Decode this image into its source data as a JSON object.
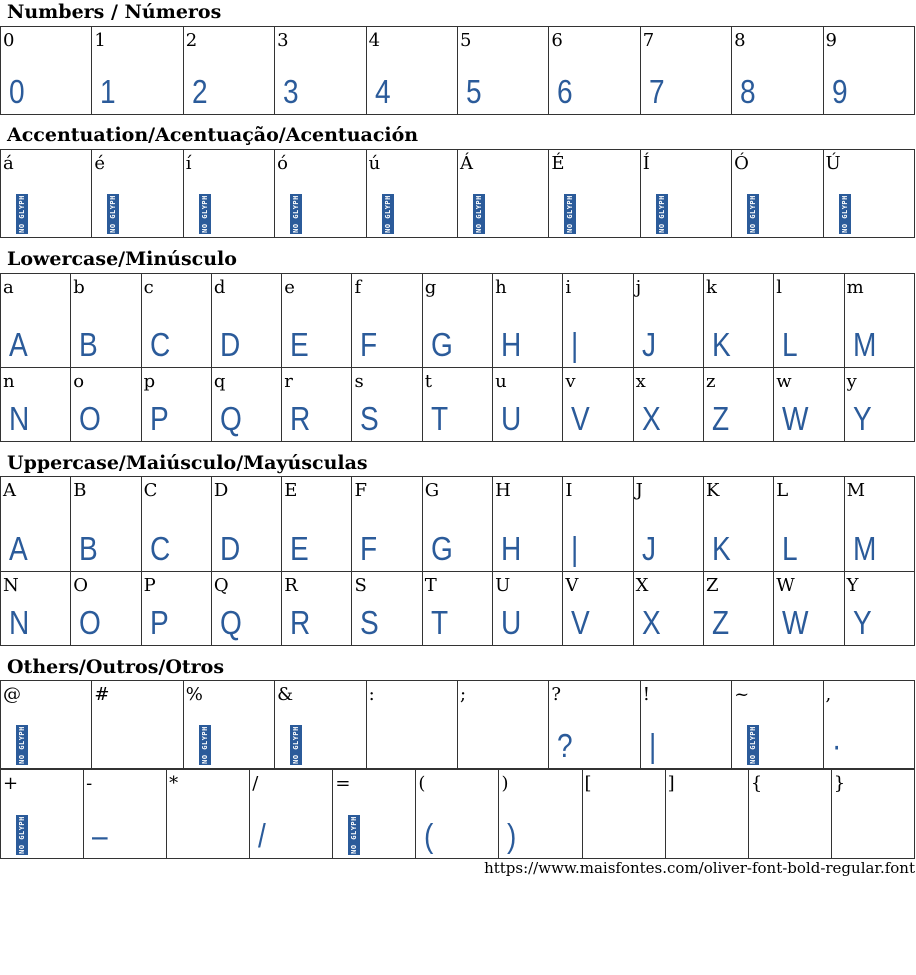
{
  "accent_color": "#2b5b9a",
  "no_glyph_text": "NO GLYPH",
  "sections": [
    {
      "title": "Numbers / Números",
      "rows": [
        [
          [
            "0",
            "0"
          ],
          [
            "1",
            "1"
          ],
          [
            "2",
            "2"
          ],
          [
            "3",
            "3"
          ],
          [
            "4",
            "4"
          ],
          [
            "5",
            "5"
          ],
          [
            "6",
            "6"
          ],
          [
            "7",
            "7"
          ],
          [
            "8",
            "8"
          ],
          [
            "9",
            "9"
          ]
        ]
      ]
    },
    {
      "title": "Accentuation/Acentuação/Acentuación",
      "rows": [
        [
          [
            "á",
            null
          ],
          [
            "é",
            null
          ],
          [
            "í",
            null
          ],
          [
            "ó",
            null
          ],
          [
            "ú",
            null
          ],
          [
            "Á",
            null
          ],
          [
            "É",
            null
          ],
          [
            "Í",
            null
          ],
          [
            "Ó",
            null
          ],
          [
            "Ú",
            null
          ]
        ]
      ]
    },
    {
      "title": "Lowercase/Minúsculo",
      "rows": [
        [
          [
            "a",
            "A"
          ],
          [
            "b",
            "B"
          ],
          [
            "c",
            "C"
          ],
          [
            "d",
            "D"
          ],
          [
            "e",
            "E"
          ],
          [
            "f",
            "F"
          ],
          [
            "g",
            "G"
          ],
          [
            "h",
            "H"
          ],
          [
            "i",
            "|"
          ],
          [
            "j",
            "J"
          ],
          [
            "k",
            "K"
          ],
          [
            "l",
            "L"
          ],
          [
            "m",
            "M"
          ]
        ],
        [
          [
            "n",
            "N"
          ],
          [
            "o",
            "O"
          ],
          [
            "p",
            "P"
          ],
          [
            "q",
            "Q"
          ],
          [
            "r",
            "R"
          ],
          [
            "s",
            "S"
          ],
          [
            "t",
            "T"
          ],
          [
            "u",
            "U"
          ],
          [
            "v",
            "V"
          ],
          [
            "x",
            "X"
          ],
          [
            "z",
            "Z"
          ],
          [
            "w",
            "W"
          ],
          [
            "y",
            "Y"
          ]
        ]
      ]
    },
    {
      "title": "Uppercase/Maiúsculo/Mayúsculas",
      "rows": [
        [
          [
            "A",
            "A"
          ],
          [
            "B",
            "B"
          ],
          [
            "C",
            "C"
          ],
          [
            "D",
            "D"
          ],
          [
            "E",
            "E"
          ],
          [
            "F",
            "F"
          ],
          [
            "G",
            "G"
          ],
          [
            "H",
            "H"
          ],
          [
            "I",
            "|"
          ],
          [
            "J",
            "J"
          ],
          [
            "K",
            "K"
          ],
          [
            "L",
            "L"
          ],
          [
            "M",
            "M"
          ]
        ],
        [
          [
            "N",
            "N"
          ],
          [
            "O",
            "O"
          ],
          [
            "P",
            "P"
          ],
          [
            "Q",
            "Q"
          ],
          [
            "R",
            "R"
          ],
          [
            "S",
            "S"
          ],
          [
            "T",
            "T"
          ],
          [
            "U",
            "U"
          ],
          [
            "V",
            "V"
          ],
          [
            "X",
            "X"
          ],
          [
            "Z",
            "Z"
          ],
          [
            "W",
            "W"
          ],
          [
            "Y",
            "Y"
          ]
        ]
      ]
    },
    {
      "title": "Others/Outros/Otros",
      "rows": [
        [
          [
            "@",
            null
          ],
          [
            "#",
            ""
          ],
          [
            "%",
            null
          ],
          [
            "&",
            null
          ],
          [
            ":",
            ""
          ],
          [
            ";",
            ""
          ],
          [
            "?",
            "?"
          ],
          [
            "!",
            "|"
          ],
          [
            "~",
            null
          ],
          [
            ",",
            "·"
          ]
        ],
        [
          [
            "+",
            null
          ],
          [
            "-",
            "–"
          ],
          [
            "*",
            ""
          ],
          [
            "/",
            "/"
          ],
          [
            "=",
            null
          ],
          [
            "(",
            "("
          ],
          [
            ")",
            ")"
          ],
          [
            "[",
            ""
          ],
          [
            "]",
            ""
          ],
          [
            "{",
            ""
          ],
          [
            "}",
            ""
          ]
        ]
      ]
    }
  ],
  "footer_url": "https://www.maisfontes.com/oliver-font-bold-regular.font"
}
